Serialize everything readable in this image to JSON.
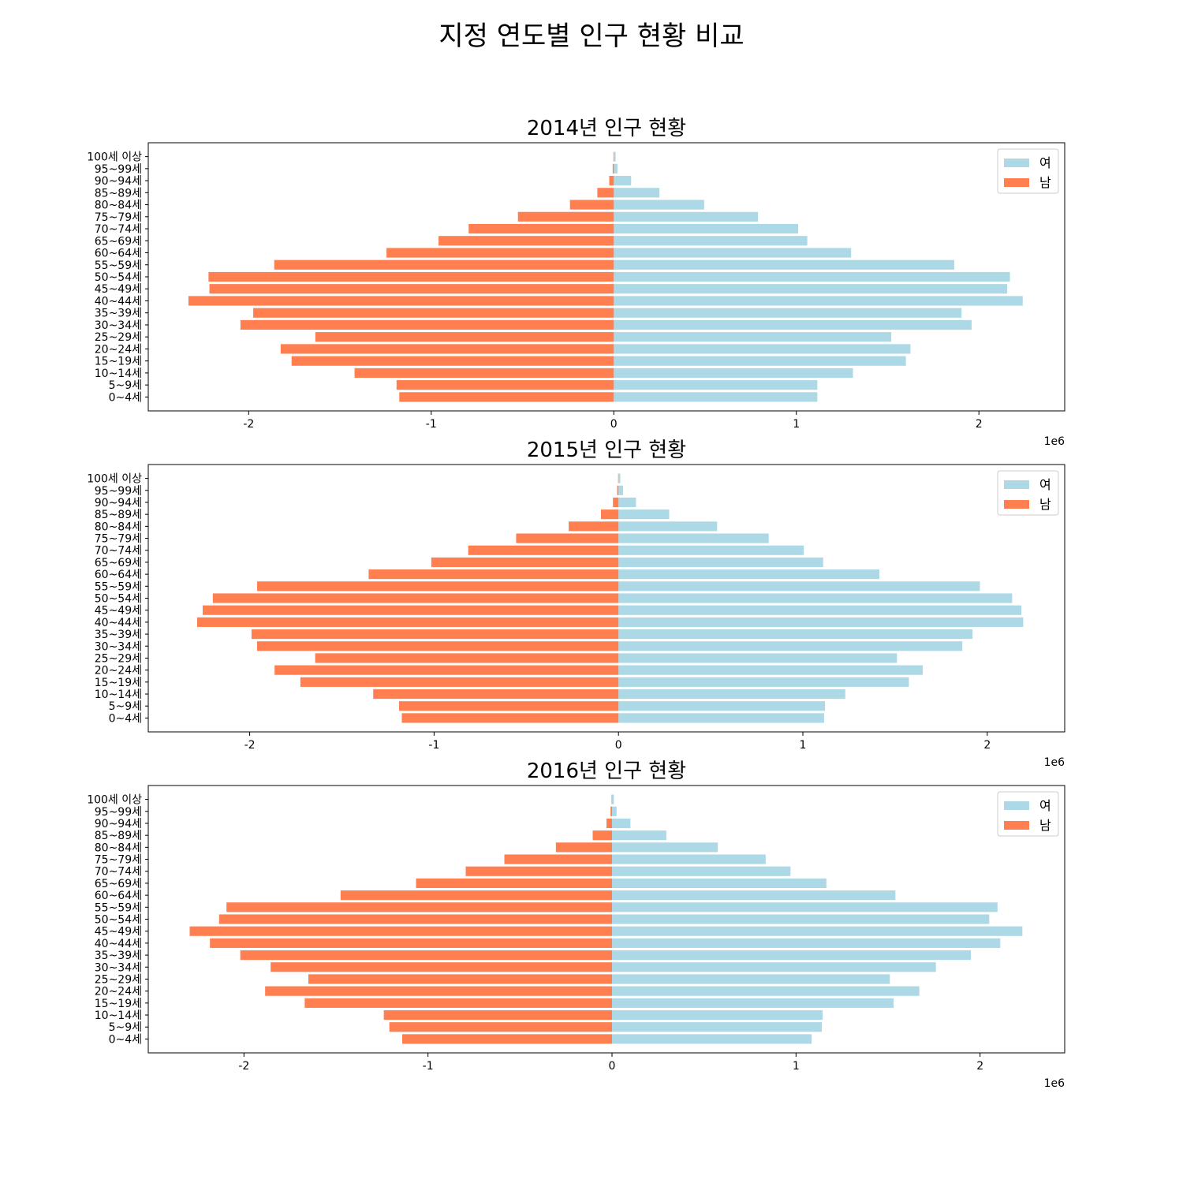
{
  "suptitle": "지정 연도별 인구 현황 비교",
  "colors": {
    "female": "#add8e6",
    "male": "#ff7f50"
  },
  "chart_data": [
    {
      "type": "bar",
      "orientation": "horizontal",
      "title": "2014년 인구 현황",
      "xlim": [
        -2550000,
        2470000
      ],
      "xticks": [
        -2000000,
        -1000000,
        0,
        1000000,
        2000000
      ],
      "xtick_labels": [
        "-2",
        "-1",
        "0",
        "1",
        "2"
      ],
      "x_offset_label": "1e6",
      "legend_position": "top-right",
      "categories": [
        "0~4세",
        "5~9세",
        "10~14세",
        "15~19세",
        "20~24세",
        "25~29세",
        "30~34세",
        "35~39세",
        "40~44세",
        "45~49세",
        "50~54세",
        "55~59세",
        "60~64세",
        "65~69세",
        "70~74세",
        "75~79세",
        "80~84세",
        "85~89세",
        "90~94세",
        "95~99세",
        "100세 이상"
      ],
      "series": [
        {
          "name": "여",
          "values": [
            1115000,
            1115000,
            1310000,
            1600000,
            1625000,
            1520000,
            1960000,
            1905000,
            2240000,
            2155000,
            2170000,
            1865000,
            1300000,
            1060000,
            1010000,
            790000,
            495000,
            250000,
            95000,
            20000,
            10000
          ]
        },
        {
          "name": "남",
          "values": [
            -1175000,
            -1190000,
            -1420000,
            -1765000,
            -1825000,
            -1635000,
            -2045000,
            -1975000,
            -2330000,
            -2215000,
            -2220000,
            -1860000,
            -1245000,
            -960000,
            -795000,
            -525000,
            -240000,
            -90000,
            -25000,
            -6000,
            -2000
          ]
        }
      ]
    },
    {
      "type": "bar",
      "orientation": "horizontal",
      "title": "2015년 인구 현황",
      "xlim": [
        -2550000,
        2420000
      ],
      "xticks": [
        -2000000,
        -1000000,
        0,
        1000000,
        2000000
      ],
      "xtick_labels": [
        "-2",
        "-1",
        "0",
        "1",
        "2"
      ],
      "x_offset_label": "1e6",
      "legend_position": "top-right",
      "categories": [
        "0~4세",
        "5~9세",
        "10~14세",
        "15~19세",
        "20~24세",
        "25~29세",
        "30~34세",
        "35~39세",
        "40~44세",
        "45~49세",
        "50~54세",
        "55~59세",
        "60~64세",
        "65~69세",
        "70~74세",
        "75~79세",
        "80~84세",
        "85~89세",
        "90~94세",
        "95~99세",
        "100세 이상"
      ],
      "series": [
        {
          "name": "여",
          "values": [
            1115000,
            1120000,
            1230000,
            1575000,
            1650000,
            1510000,
            1865000,
            1920000,
            2195000,
            2185000,
            2135000,
            1960000,
            1415000,
            1110000,
            1005000,
            815000,
            535000,
            275000,
            95000,
            25000,
            10000
          ]
        },
        {
          "name": "남",
          "values": [
            -1175000,
            -1190000,
            -1330000,
            -1725000,
            -1865000,
            -1645000,
            -1960000,
            -1990000,
            -2285000,
            -2255000,
            -2200000,
            -1960000,
            -1355000,
            -1015000,
            -815000,
            -555000,
            -270000,
            -95000,
            -30000,
            -7000,
            -2000
          ]
        }
      ]
    },
    {
      "type": "bar",
      "orientation": "horizontal",
      "title": "2016년 인구 현황",
      "xlim": [
        -2520000,
        2460000
      ],
      "xticks": [
        -2000000,
        -1000000,
        0,
        1000000,
        2000000
      ],
      "xtick_labels": [
        "-2",
        "-1",
        "0",
        "1",
        "2"
      ],
      "x_offset_label": "1e6",
      "legend_position": "top-right",
      "categories": [
        "0~4세",
        "5~9세",
        "10~14세",
        "15~19세",
        "20~24세",
        "25~29세",
        "30~34세",
        "35~39세",
        "40~44세",
        "45~49세",
        "50~54세",
        "55~59세",
        "60~64세",
        "65~69세",
        "70~74세",
        "75~79세",
        "80~84세",
        "85~89세",
        "90~94세",
        "95~99세",
        "100세 이상"
      ],
      "series": [
        {
          "name": "여",
          "values": [
            1085000,
            1140000,
            1145000,
            1530000,
            1670000,
            1510000,
            1760000,
            1950000,
            2110000,
            2230000,
            2050000,
            2095000,
            1540000,
            1165000,
            970000,
            835000,
            575000,
            295000,
            100000,
            25000,
            10000
          ]
        },
        {
          "name": "남",
          "values": [
            -1140000,
            -1210000,
            -1240000,
            -1670000,
            -1885000,
            -1650000,
            -1855000,
            -2020000,
            -2185000,
            -2295000,
            -2135000,
            -2095000,
            -1475000,
            -1065000,
            -795000,
            -585000,
            -305000,
            -105000,
            -30000,
            -8000,
            -2000
          ]
        }
      ]
    }
  ]
}
